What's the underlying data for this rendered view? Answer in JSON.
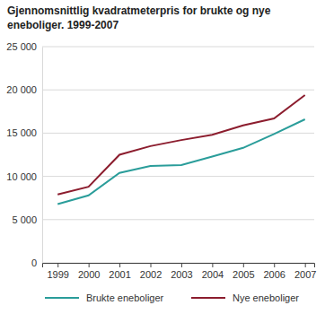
{
  "chart_data": {
    "type": "line",
    "title": "Gjennomsnittlig kvadratmeterpris for brukte og nye eneboliger. 1999-2007",
    "x": [
      1999,
      2000,
      2001,
      2002,
      2003,
      2004,
      2005,
      2006,
      2007
    ],
    "xlim": [
      1998.5,
      2007.3
    ],
    "xticks": [
      1999,
      2000,
      2001,
      2002,
      2003,
      2004,
      2005,
      2006,
      2007
    ],
    "ylim": [
      0,
      25000
    ],
    "yticks": [
      0,
      {
        "value": 5000,
        "label": "5 000"
      },
      {
        "value": 10000,
        "label": "10 000"
      },
      {
        "value": 15000,
        "label": "15 000"
      },
      {
        "value": 20000,
        "label": "20 000"
      },
      {
        "value": 25000,
        "label": "25 000"
      }
    ],
    "grid": true,
    "legend": "bottom",
    "series": [
      {
        "name": "Brukte eneboliger",
        "color": "#2a9d9a",
        "values": [
          6800,
          7800,
          10400,
          11200,
          11300,
          12300,
          13300,
          14900,
          16600
        ]
      },
      {
        "name": "Nye eneboliger",
        "color": "#8c1d2e",
        "values": [
          7900,
          8800,
          12500,
          13500,
          14200,
          14800,
          15900,
          16700,
          19400
        ]
      }
    ]
  }
}
